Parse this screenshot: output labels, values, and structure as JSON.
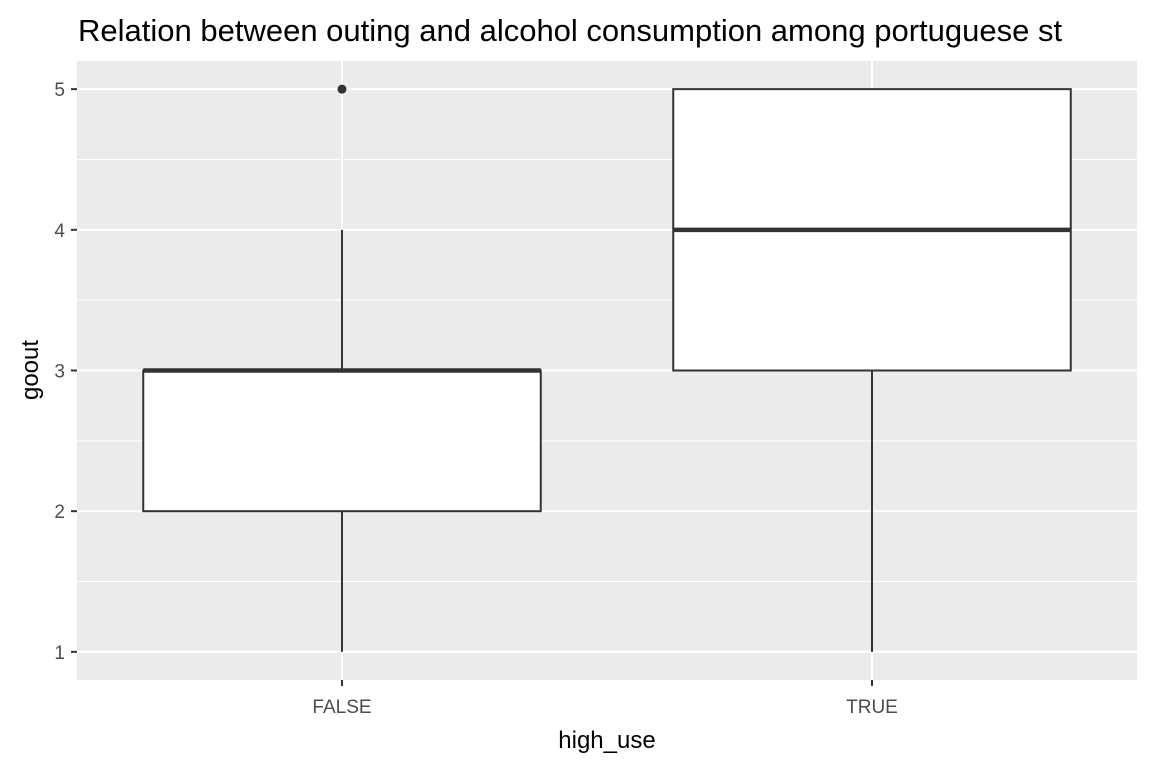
{
  "chart_data": {
    "type": "box",
    "title": "Relation between outing and alcohol consumption among portuguese st",
    "xlabel": "high_use",
    "ylabel": "goout",
    "categories": [
      "FALSE",
      "TRUE"
    ],
    "ylim": [
      0.8,
      5.2
    ],
    "yticks": [
      1,
      2,
      3,
      4,
      5
    ],
    "boxes": [
      {
        "category": "FALSE",
        "min": 1,
        "q1": 2,
        "median": 3,
        "q3": 3,
        "max": 4,
        "outliers": [
          5
        ]
      },
      {
        "category": "TRUE",
        "min": 1,
        "q1": 3,
        "median": 4,
        "q3": 5,
        "max": 5,
        "outliers": []
      }
    ],
    "grid": true,
    "colors": {
      "panel_background": "#EBEBEB",
      "grid_line": "#FFFFFF",
      "box_fill": "#FFFFFF",
      "box_line": "#333333",
      "tick_text": "#4D4D4D"
    }
  }
}
